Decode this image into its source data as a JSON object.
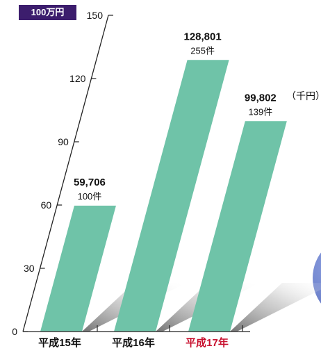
{
  "chart_data": {
    "type": "bar",
    "y_unit_label": "100万円",
    "value_unit_label": "（千円）",
    "categories": [
      "平成15年",
      "平成16年",
      "平成17年"
    ],
    "category_colors": [
      "#111111",
      "#111111",
      "#c8102e"
    ],
    "values": [
      59.706,
      128.801,
      99.802
    ],
    "value_labels": [
      "59,706",
      "128,801",
      "99,802"
    ],
    "count_labels": [
      "100件",
      "255件",
      "139件"
    ],
    "ylim": [
      0,
      150
    ],
    "yticks": [
      "0",
      "30",
      "60",
      "90",
      "120",
      "150"
    ],
    "bar_color": "#6fc3a8",
    "grid": false,
    "legend": "none"
  }
}
